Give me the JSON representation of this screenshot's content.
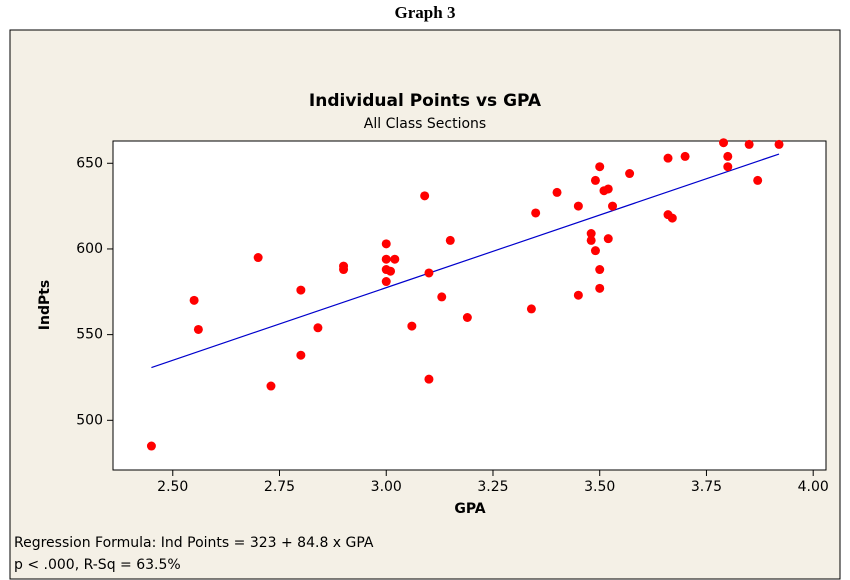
{
  "caption": "Graph 3",
  "chart_data": {
    "type": "scatter",
    "title": "Individual Points vs GPA",
    "subtitle": "All Class Sections",
    "xlabel": "GPA",
    "ylabel": "IndPts",
    "x": [
      2.45,
      2.55,
      2.56,
      2.7,
      2.73,
      2.8,
      2.8,
      2.84,
      2.9,
      2.9,
      3.0,
      3.0,
      3.0,
      3.0,
      3.01,
      3.02,
      3.06,
      3.09,
      3.1,
      3.1,
      3.13,
      3.15,
      3.19,
      3.34,
      3.35,
      3.4,
      3.45,
      3.45,
      3.48,
      3.48,
      3.49,
      3.49,
      3.5,
      3.5,
      3.5,
      3.51,
      3.52,
      3.52,
      3.53,
      3.57,
      3.66,
      3.66,
      3.67,
      3.7,
      3.79,
      3.8,
      3.8,
      3.85,
      3.87,
      3.92
    ],
    "values": [
      485,
      570,
      553,
      595,
      520,
      576,
      538,
      554,
      590,
      588,
      603,
      594,
      588,
      581,
      587,
      594,
      555,
      631,
      586,
      524,
      572,
      605,
      560,
      565,
      621,
      633,
      625,
      573,
      609,
      605,
      640,
      599,
      648,
      588,
      577,
      634,
      635,
      606,
      625,
      644,
      653,
      620,
      618,
      654,
      662,
      654,
      648,
      661,
      640,
      661
    ],
    "color": "#ff0000",
    "fit": {
      "x": [
        2.45,
        3.92
      ],
      "values": [
        530.8,
        655.4
      ],
      "color": "#0000cc"
    },
    "xlim": [
      2.36,
      4.03
    ],
    "ylim": [
      471,
      663
    ],
    "xticks": [
      {
        "value": 2.5,
        "label": "2.50"
      },
      {
        "value": 2.75,
        "label": "2.75"
      },
      {
        "value": 3.0,
        "label": "3.00"
      },
      {
        "value": 3.25,
        "label": "3.25"
      },
      {
        "value": 3.5,
        "label": "3.50"
      },
      {
        "value": 3.75,
        "label": "3.75"
      },
      {
        "value": 4.0,
        "label": "4.00"
      }
    ],
    "yticks": [
      500,
      550,
      600,
      650
    ],
    "notes": [
      "Regression Formula: Ind Points = 323 + 84.8 x GPA",
      "p < .000, R-Sq = 63.5%"
    ]
  }
}
